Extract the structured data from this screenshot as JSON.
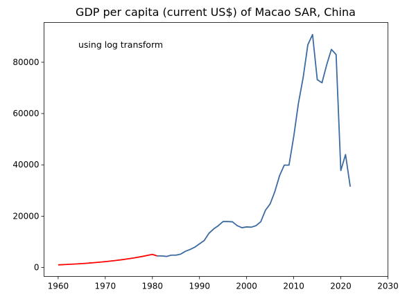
{
  "chart_data": {
    "type": "line",
    "title": "GDP per capita (current US$) of Macao SAR, China",
    "annotation": "using log transform",
    "xlabel": "",
    "ylabel": "",
    "xlim": [
      1957,
      2030
    ],
    "ylim": [
      -3500,
      95500
    ],
    "xticks": [
      1960,
      1970,
      1980,
      1990,
      2000,
      2010,
      2020,
      2030
    ],
    "yticks": [
      0,
      20000,
      40000,
      60000,
      80000
    ],
    "grid": false,
    "series": [
      {
        "color": "#ff0000",
        "x": [
          1960,
          1962,
          1964,
          1966,
          1968,
          1970,
          1972,
          1974,
          1976,
          1978,
          1980,
          1981
        ],
        "y": [
          1000,
          1180,
          1390,
          1630,
          1920,
          2260,
          2660,
          3130,
          3690,
          4340,
          5100,
          4500
        ]
      },
      {
        "color": "#3b6aa0",
        "x": [
          1981,
          1982,
          1983,
          1984,
          1985,
          1986,
          1987,
          1988,
          1989,
          1990,
          1991,
          1992,
          1993,
          1994,
          1995,
          1996,
          1997,
          1998,
          1999,
          2000,
          2001,
          2002,
          2003,
          2004,
          2005,
          2006,
          2007,
          2008,
          2009,
          2010,
          2011,
          2012,
          2013,
          2014,
          2015,
          2016,
          2017,
          2018,
          2019,
          2020,
          2021,
          2022
        ],
        "y": [
          4500,
          4500,
          4300,
          4800,
          4800,
          5200,
          6300,
          7000,
          7900,
          9200,
          10500,
          13300,
          15000,
          16300,
          17900,
          17900,
          17800,
          16300,
          15500,
          15800,
          15700,
          16300,
          17800,
          22300,
          24800,
          29600,
          35800,
          39900,
          39900,
          51000,
          64000,
          74000,
          86800,
          90800,
          73200,
          72000,
          79000,
          85000,
          83000,
          37800,
          44000,
          31500
        ]
      }
    ]
  }
}
